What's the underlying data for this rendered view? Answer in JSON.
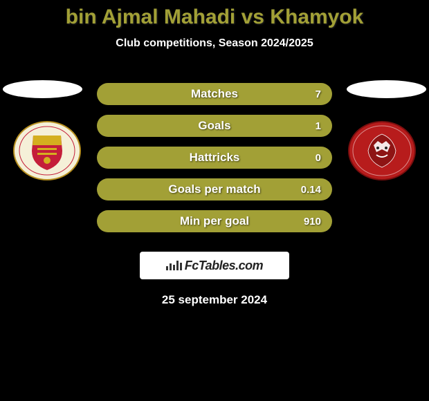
{
  "title": "bin Ajmal Mahadi vs Khamyok",
  "subtitle": "Club competitions, Season 2024/2025",
  "date": "25 september 2024",
  "logo": "FcTables.com",
  "bar_color": "#a2a036",
  "empty_bar_color": "#3a3a3a",
  "stats": [
    {
      "label": "Matches",
      "value": "7",
      "fill": 1.0
    },
    {
      "label": "Goals",
      "value": "1",
      "fill": 1.0
    },
    {
      "label": "Hattricks",
      "value": "0",
      "fill": 1.0
    },
    {
      "label": "Goals per match",
      "value": "0.14",
      "fill": 1.0
    },
    {
      "label": "Min per goal",
      "value": "910",
      "fill": 1.0
    }
  ],
  "crest_left": {
    "outer_bg": "#f5f0d8",
    "shield_top": "#d4af1f",
    "shield_bottom": "#c41e3a",
    "outline": "#b89020"
  },
  "crest_right": {
    "bg": "#b71c1c",
    "accent": "#ffffff"
  }
}
